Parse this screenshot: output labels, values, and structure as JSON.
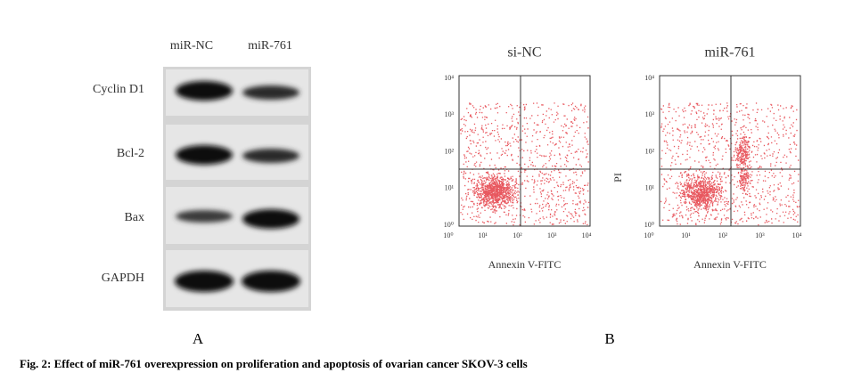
{
  "panel_a": {
    "label": "A",
    "lanes": [
      "miR-NC",
      "miR-761"
    ],
    "proteins": [
      "Cyclin D1",
      "Bcl-2",
      "Bax",
      "GAPDH"
    ]
  },
  "panel_b": {
    "label": "B",
    "plots": [
      {
        "title": "si-NC",
        "x_label": "Annexin V-FITC",
        "x_ticks": [
          "10⁰",
          "10¹",
          "10²",
          "10³",
          "10⁴"
        ],
        "y_ticks": [
          "10⁴",
          "10³",
          "10²",
          "10¹",
          "10⁰"
        ]
      },
      {
        "title": "miR-761",
        "x_label": "Annexin V-FITC",
        "y_label": "PI",
        "x_ticks": [
          "10⁰",
          "10¹",
          "10²",
          "10³",
          "10⁴"
        ],
        "y_ticks": [
          "10⁴",
          "10³",
          "10²",
          "10¹",
          "10⁰"
        ]
      }
    ]
  },
  "caption": "Fig. 2: Effect of miR-761 overexpression on proliferation and apoptosis of ovarian cancer SKOV-3 cells"
}
